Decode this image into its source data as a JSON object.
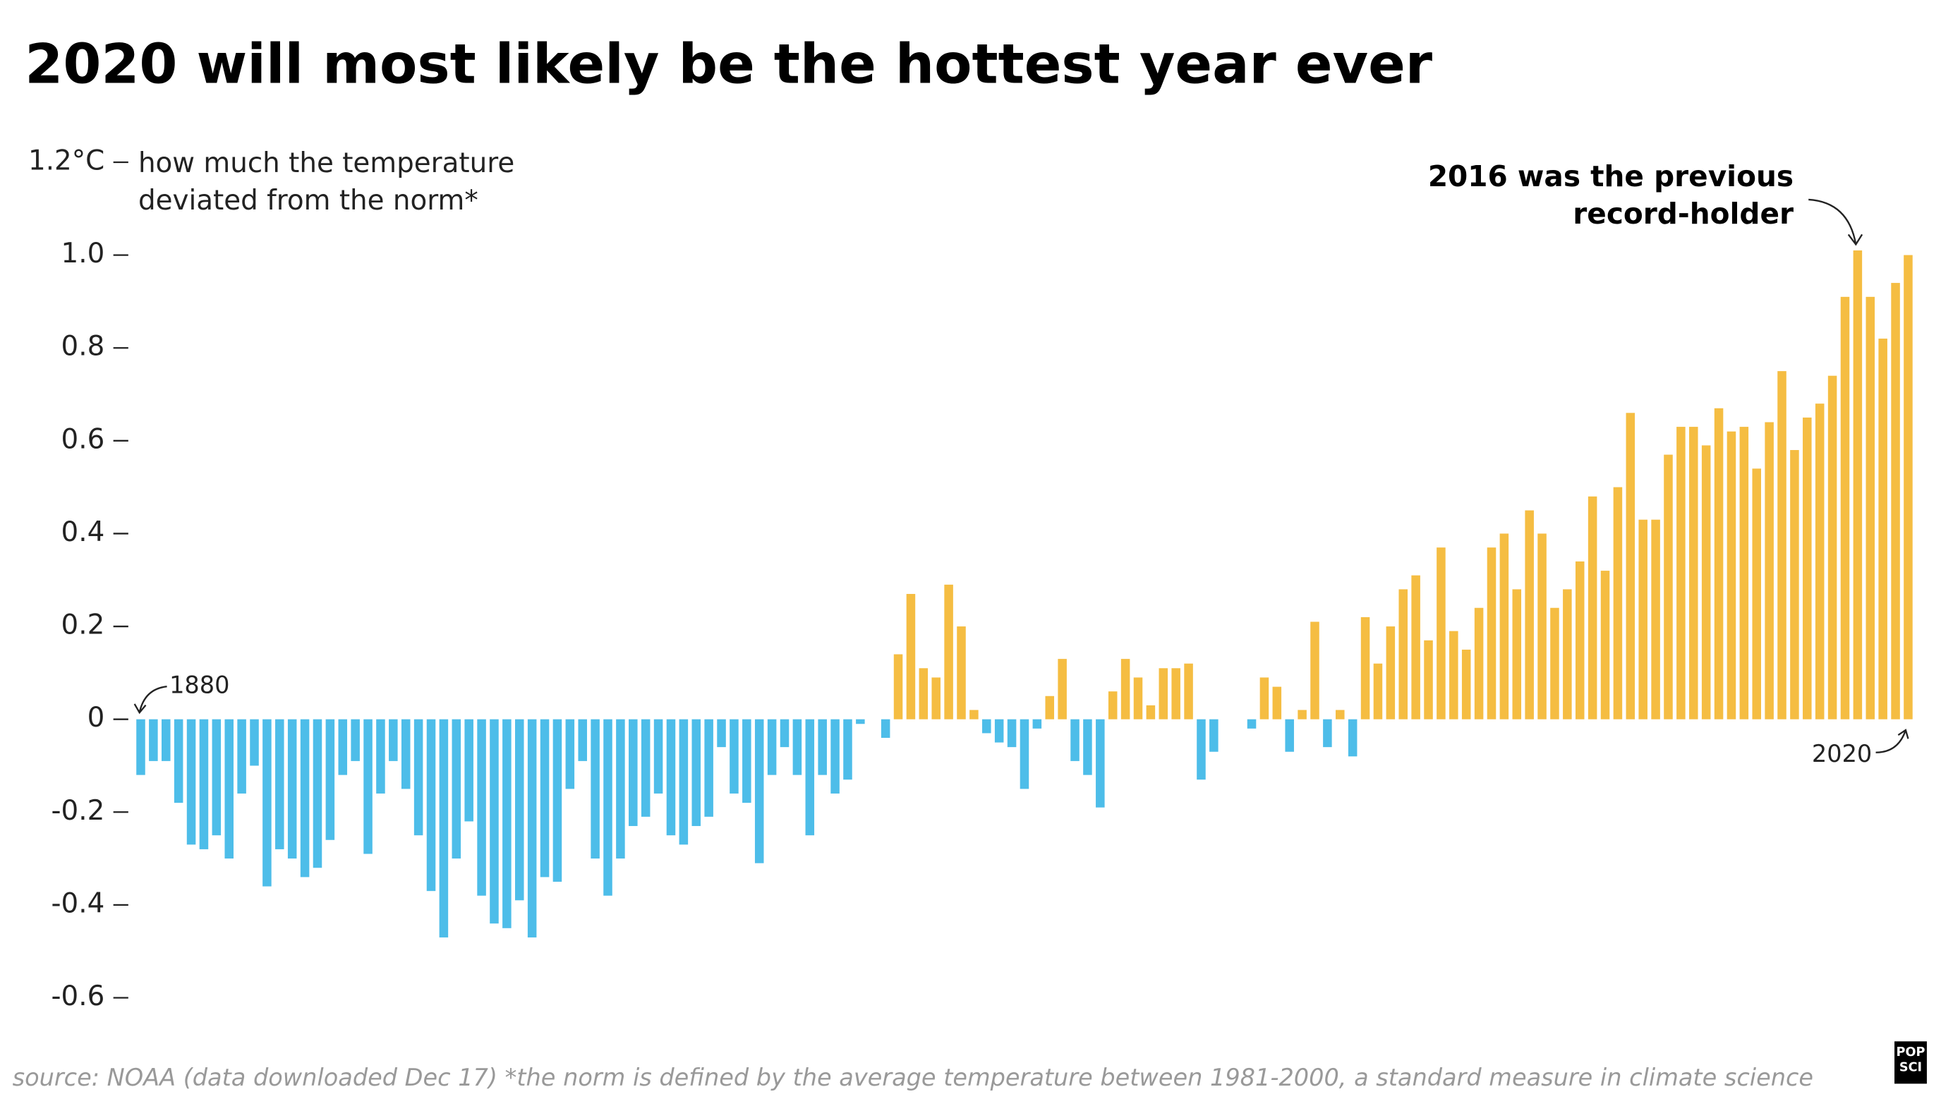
{
  "chart_data": {
    "type": "bar",
    "title": "2020 will most likely be the hottest year ever",
    "y_label": [
      "how much the temperature",
      "deviated from the norm*"
    ],
    "annotation": [
      "2016 was the previous",
      "record-holder"
    ],
    "source": "source: NOAA (data downloaded Dec 17) *the norm is defined by the average temperature between 1981-2000, a standard measure in climate science",
    "logo": [
      "POP",
      "SCI"
    ],
    "positive_color": "#f5bd42",
    "negative_color": "#4dbde9",
    "xlim": [
      1880,
      2020
    ],
    "ylim": [
      -0.6,
      1.2
    ],
    "yticks": [
      {
        "value": 1.2,
        "label": "1.2°C"
      },
      {
        "value": 1,
        "label": "1.0"
      },
      0.8,
      0.6,
      0.4,
      0.2,
      0,
      -0.2,
      -0.4,
      -0.6
    ],
    "x": [
      1880,
      1881,
      1882,
      1883,
      1884,
      1885,
      1886,
      1887,
      1888,
      1889,
      1890,
      1891,
      1892,
      1893,
      1894,
      1895,
      1896,
      1897,
      1898,
      1899,
      1900,
      1901,
      1902,
      1903,
      1904,
      1905,
      1906,
      1907,
      1908,
      1909,
      1910,
      1911,
      1912,
      1913,
      1914,
      1915,
      1916,
      1917,
      1918,
      1919,
      1920,
      1921,
      1922,
      1923,
      1924,
      1925,
      1926,
      1927,
      1928,
      1929,
      1930,
      1931,
      1932,
      1933,
      1934,
      1935,
      1936,
      1937,
      1938,
      1939,
      1940,
      1941,
      1942,
      1943,
      1944,
      1945,
      1946,
      1947,
      1948,
      1949,
      1950,
      1951,
      1952,
      1953,
      1954,
      1955,
      1956,
      1957,
      1958,
      1959,
      1960,
      1961,
      1962,
      1963,
      1964,
      1965,
      1966,
      1967,
      1968,
      1969,
      1970,
      1971,
      1972,
      1973,
      1974,
      1975,
      1976,
      1977,
      1978,
      1979,
      1980,
      1981,
      1982,
      1983,
      1984,
      1985,
      1986,
      1987,
      1988,
      1989,
      1990,
      1991,
      1992,
      1993,
      1994,
      1995,
      1996,
      1997,
      1998,
      1999,
      2000,
      2001,
      2002,
      2003,
      2004,
      2005,
      2006,
      2007,
      2008,
      2009,
      2010,
      2011,
      2012,
      2013,
      2014,
      2015,
      2016,
      2017,
      2018,
      2019,
      2020
    ],
    "values": [
      -0.12,
      -0.09,
      -0.09,
      -0.18,
      -0.27,
      -0.28,
      -0.25,
      -0.3,
      -0.16,
      -0.1,
      -0.36,
      -0.28,
      -0.3,
      -0.34,
      -0.32,
      -0.26,
      -0.12,
      -0.09,
      -0.29,
      -0.16,
      -0.09,
      -0.15,
      -0.25,
      -0.37,
      -0.47,
      -0.3,
      -0.22,
      -0.38,
      -0.44,
      -0.45,
      -0.39,
      -0.47,
      -0.34,
      -0.35,
      -0.15,
      -0.09,
      -0.3,
      -0.38,
      -0.3,
      -0.23,
      -0.21,
      -0.16,
      -0.25,
      -0.27,
      -0.23,
      -0.21,
      -0.06,
      -0.16,
      -0.18,
      -0.31,
      -0.12,
      -0.06,
      -0.12,
      -0.25,
      -0.12,
      -0.16,
      -0.13,
      -0.01,
      0,
      -0.04,
      0.14,
      0.27,
      0.11,
      0.09,
      0.29,
      0.2,
      0.02,
      -0.03,
      -0.05,
      -0.06,
      -0.15,
      -0.02,
      0.05,
      0.13,
      -0.09,
      -0.12,
      -0.19,
      0.06,
      0.13,
      0.09,
      0.03,
      0.11,
      0.11,
      0.12,
      -0.13,
      -0.07,
      0,
      0,
      -0.02,
      0.09,
      0.07,
      -0.07,
      0.02,
      0.21,
      -0.06,
      0.02,
      -0.08,
      0.22,
      0.12,
      0.2,
      0.28,
      0.31,
      0.17,
      0.37,
      0.19,
      0.15,
      0.24,
      0.37,
      0.4,
      0.28,
      0.45,
      0.4,
      0.24,
      0.28,
      0.34,
      0.48,
      0.32,
      0.5,
      0.66,
      0.43,
      0.43,
      0.57,
      0.63,
      0.63,
      0.59,
      0.67,
      0.62,
      0.63,
      0.54,
      0.64,
      0.75,
      0.58,
      0.65,
      0.68,
      0.74,
      0.91,
      1.01,
      0.91,
      0.82,
      0.94,
      1.0
    ]
  }
}
